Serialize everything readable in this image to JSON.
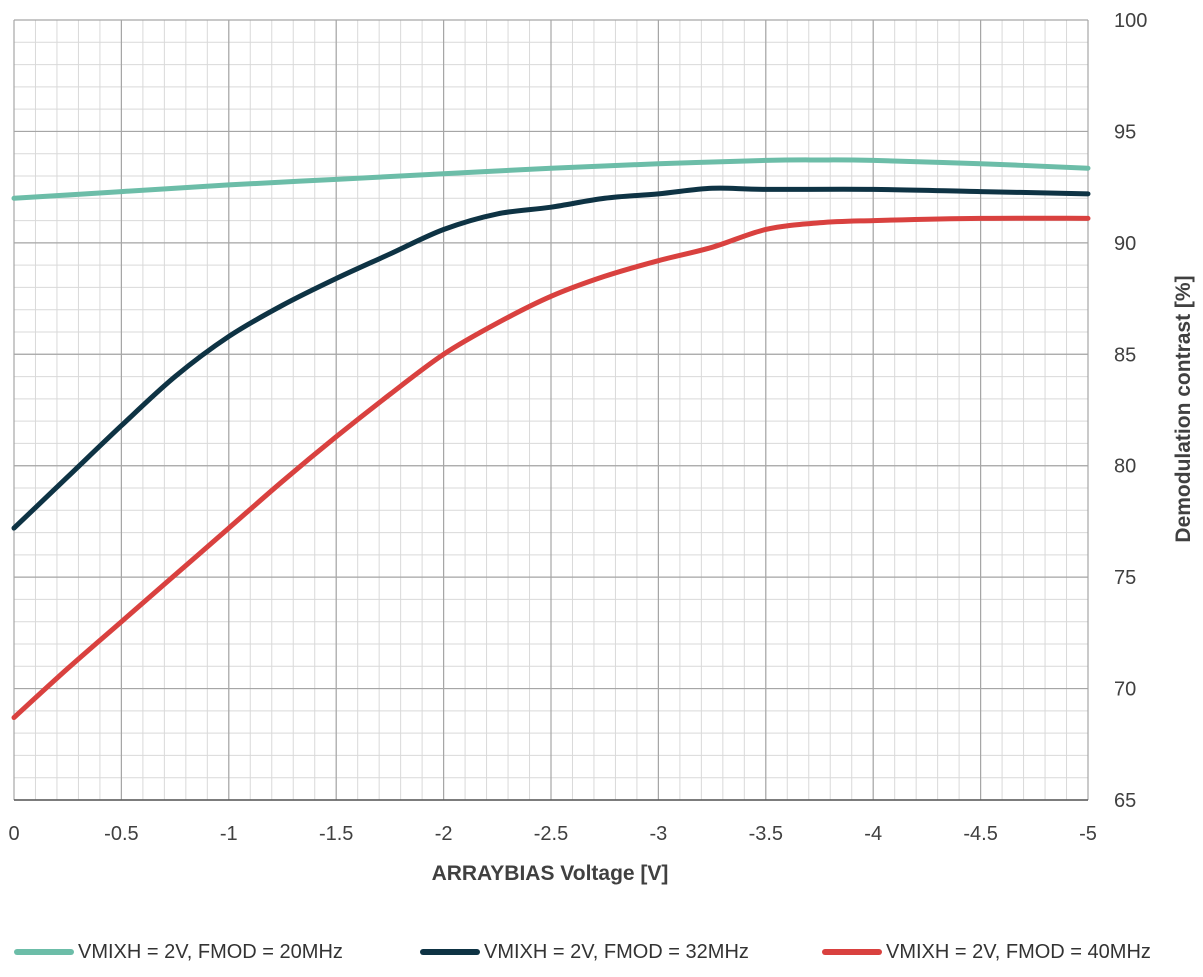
{
  "chart_data": {
    "type": "line",
    "title": "",
    "xlabel": "ARRAYBIAS Voltage [V]",
    "ylabel": "Demodulation contrast [%]",
    "xlim": [
      0,
      -5
    ],
    "ylim": [
      65,
      100
    ],
    "x_ticks": [
      "0",
      "-0.5",
      "-1",
      "-1.5",
      "-2",
      "-2.5",
      "-3",
      "-3.5",
      "-4",
      "-4.5",
      "-5"
    ],
    "y_ticks": [
      "65",
      "70",
      "75",
      "80",
      "85",
      "90",
      "95",
      "100"
    ],
    "y_axis_position": "right",
    "grid": true,
    "legend_position": "bottom",
    "series": [
      {
        "name": "VMIXH = 2V, FMOD = 20MHz",
        "color": "#6CBDA8",
        "x": [
          0,
          -0.5,
          -1,
          -1.5,
          -2,
          -2.5,
          -3,
          -3.5,
          -3.75,
          -4,
          -4.5,
          -5
        ],
        "y": [
          92.0,
          92.3,
          92.6,
          92.85,
          93.1,
          93.35,
          93.55,
          93.7,
          93.72,
          93.7,
          93.55,
          93.35
        ]
      },
      {
        "name": "VMIXH = 2V, FMOD = 32MHz",
        "color": "#0E3344",
        "x": [
          0,
          -0.25,
          -0.5,
          -0.75,
          -1,
          -1.25,
          -1.5,
          -1.75,
          -2,
          -2.25,
          -2.5,
          -2.75,
          -3,
          -3.25,
          -3.5,
          -4,
          -4.5,
          -5
        ],
        "y": [
          77.2,
          79.5,
          81.8,
          84.0,
          85.8,
          87.2,
          88.4,
          89.5,
          90.6,
          91.3,
          91.6,
          92.0,
          92.2,
          92.45,
          92.4,
          92.4,
          92.3,
          92.2
        ]
      },
      {
        "name": "VMIXH = 2V, FMOD = 40MHz",
        "color": "#D9413F",
        "x": [
          0,
          -0.25,
          -0.5,
          -0.75,
          -1,
          -1.25,
          -1.5,
          -1.75,
          -2,
          -2.25,
          -2.5,
          -2.75,
          -3,
          -3.25,
          -3.5,
          -3.75,
          -4,
          -4.5,
          -5
        ],
        "y": [
          68.7,
          70.9,
          73.0,
          75.1,
          77.2,
          79.3,
          81.3,
          83.2,
          85.0,
          86.4,
          87.6,
          88.5,
          89.2,
          89.8,
          90.6,
          90.9,
          91.0,
          91.1,
          91.1
        ]
      }
    ]
  }
}
